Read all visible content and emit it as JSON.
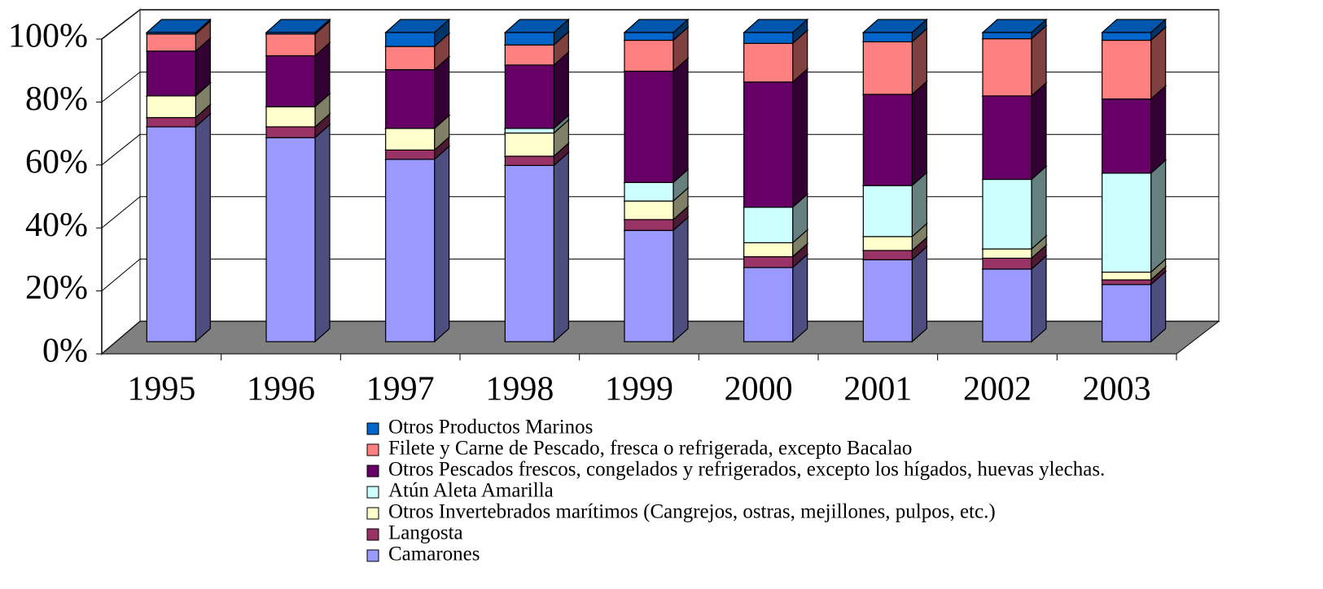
{
  "chart_data": {
    "type": "stacked-bar-3d",
    "categories": [
      "1995",
      "1996",
      "1997",
      "1998",
      "1999",
      "2000",
      "2001",
      "2002",
      "2003"
    ],
    "series": [
      {
        "name": "Otros Productos Marinos",
        "color": "#0066cc",
        "values": [
          0.5,
          0.5,
          4.5,
          4,
          2.5,
          3.5,
          3,
          2,
          2.5
        ]
      },
      {
        "name": "Filete y Carne de Pescado, fresca o refrigerada, excepto Bacalao",
        "color": "#ff8080",
        "values": [
          5.5,
          7,
          7.5,
          6.5,
          10,
          12.5,
          17,
          18.5,
          19
        ]
      },
      {
        "name": "Otros Pescados frescos, congelados y refrigerados, excepto los hígados, huevas ylechas.",
        "color": "#660066",
        "values": [
          14.5,
          16.5,
          19,
          20.5,
          36,
          40.5,
          29.5,
          27,
          24
        ]
      },
      {
        "name": "Atún Aleta Amarilla",
        "color": "#ccffff",
        "values": [
          0,
          0,
          0,
          1.5,
          6,
          11.5,
          16.5,
          22.5,
          32
        ]
      },
      {
        "name": "Otros Invertebrados marítimos (Cangrejos, ostras, mejillones, pulpos, etc.)",
        "color": "#ffffcc",
        "values": [
          7,
          6.5,
          7,
          7.5,
          6,
          4.5,
          4.5,
          3,
          2.5
        ]
      },
      {
        "name": "Langosta",
        "color": "#993366",
        "values": [
          3,
          3.5,
          3,
          3,
          3.5,
          3.5,
          3,
          3.5,
          1.5
        ]
      },
      {
        "name": "Camarones",
        "color": "#9999ff",
        "values": [
          69.5,
          66,
          59,
          57,
          36,
          24,
          26.5,
          23.5,
          18.5
        ]
      }
    ],
    "ylim": [
      0,
      100
    ],
    "yticks": [
      {
        "value": 0,
        "label": "0%"
      },
      {
        "value": 20,
        "label": "20%"
      },
      {
        "value": 40,
        "label": "40%"
      },
      {
        "value": 60,
        "label": "60%"
      },
      {
        "value": 80,
        "label": "80%"
      },
      {
        "value": 100,
        "label": "100%"
      }
    ],
    "grid": true
  }
}
